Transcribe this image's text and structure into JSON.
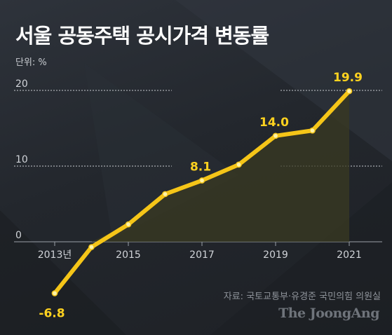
{
  "title": "서울 공동주택 공시가격 변동률",
  "unit_label": "단위: %",
  "source": "자료: 국토교통부·유경준 국민의힘 의원실",
  "brand": "The JoongAng",
  "colors": {
    "background": "#262a30",
    "line": "#f5c518",
    "point_fill": "#fff3a8",
    "area_fill": "#3a3a22",
    "grid": "#c9ccd1",
    "label": "#ffd21f",
    "tick": "#d0d3d8"
  },
  "chart_data": {
    "type": "line",
    "x": [
      2013,
      2014,
      2015,
      2016,
      2017,
      2018,
      2019,
      2020,
      2021
    ],
    "values": [
      -6.8,
      -0.7,
      2.3,
      6.3,
      8.1,
      10.2,
      14.0,
      14.7,
      19.9
    ],
    "data_labels": [
      {
        "x": 2013,
        "text": "-6.8"
      },
      {
        "x": 2017,
        "text": "8.1"
      },
      {
        "x": 2019,
        "text": "14.0"
      },
      {
        "x": 2021,
        "text": "19.9"
      }
    ],
    "x_ticks": [
      {
        "value": 2013,
        "label": "2013년"
      },
      {
        "value": 2015,
        "label": "2015"
      },
      {
        "value": 2017,
        "label": "2017"
      },
      {
        "value": 2019,
        "label": "2019"
      },
      {
        "value": 2021,
        "label": "2021"
      }
    ],
    "y_ticks": [
      0,
      10,
      20
    ],
    "ylim": [
      -8,
      21
    ],
    "grid": "dotted horizontal at 10 and 20"
  }
}
